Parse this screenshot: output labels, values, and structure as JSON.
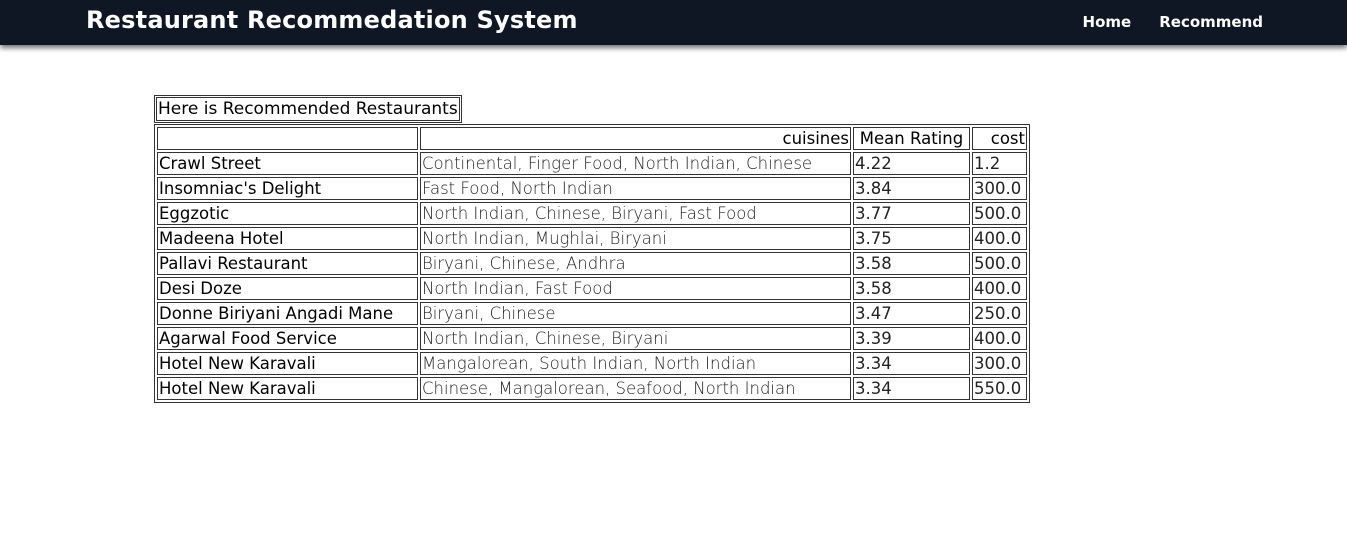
{
  "header": {
    "title": "Restaurant Recommedation System",
    "nav": [
      {
        "label": "Home"
      },
      {
        "label": "Recommend"
      }
    ]
  },
  "results": {
    "caption": "Here is Recommended Restaurants",
    "columns": [
      "",
      "cuisines",
      "Mean Rating",
      "cost"
    ],
    "rows": [
      {
        "name": "Crawl Street",
        "cuisines": "Continental, Finger Food, North Indian, Chinese",
        "rating": "4.22",
        "cost": "1.2"
      },
      {
        "name": "Insomniac's Delight",
        "cuisines": "Fast Food, North Indian",
        "rating": "3.84",
        "cost": "300.0"
      },
      {
        "name": "Eggzotic",
        "cuisines": "North Indian, Chinese, Biryani, Fast Food",
        "rating": "3.77",
        "cost": "500.0"
      },
      {
        "name": "Madeena Hotel",
        "cuisines": "North Indian, Mughlai, Biryani",
        "rating": "3.75",
        "cost": "400.0"
      },
      {
        "name": "Pallavi Restaurant",
        "cuisines": "Biryani, Chinese, Andhra",
        "rating": "3.58",
        "cost": "500.0"
      },
      {
        "name": "Desi Doze",
        "cuisines": "North Indian, Fast Food",
        "rating": "3.58",
        "cost": "400.0"
      },
      {
        "name": "Donne Biriyani Angadi Mane",
        "cuisines": "Biryani, Chinese",
        "rating": "3.47",
        "cost": "250.0"
      },
      {
        "name": "Agarwal Food Service",
        "cuisines": "North Indian, Chinese, Biryani",
        "rating": "3.39",
        "cost": "400.0"
      },
      {
        "name": "Hotel New Karavali",
        "cuisines": "Mangalorean, South Indian, North Indian",
        "rating": "3.34",
        "cost": "300.0"
      },
      {
        "name": "Hotel New Karavali",
        "cuisines": "Chinese, Mangalorean, Seafood, North Indian",
        "rating": "3.34",
        "cost": "550.0"
      }
    ]
  }
}
